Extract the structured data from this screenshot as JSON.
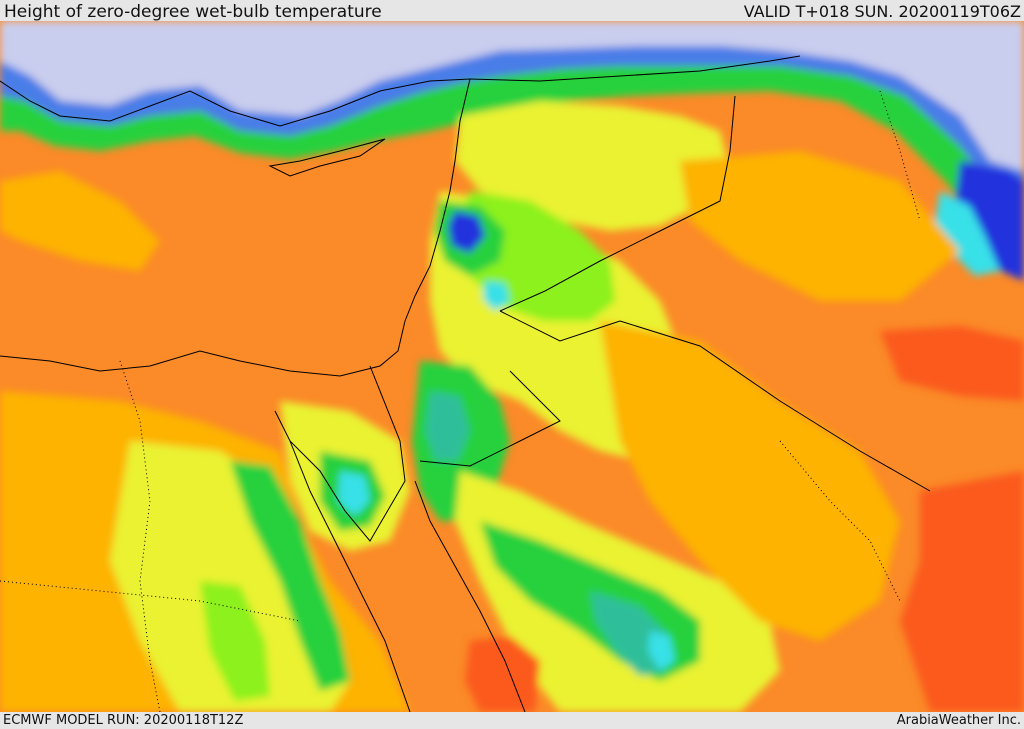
{
  "header": {
    "title": "Height of zero-degree wet-bulb temperature",
    "valid": "VALID T+018 SUN. 20200119T06Z"
  },
  "footer": {
    "model_run": "ECMWF MODEL RUN: 20200118T12Z",
    "credit": "ArabiaWeather Inc."
  },
  "map": {
    "colors": {
      "sea_ice": "#c9cdee",
      "deep_blue": "#2233dd",
      "blue": "#4a7de8",
      "cyan": "#39e0e8",
      "teal": "#2fbf9a",
      "green": "#26d13c",
      "lime": "#8cf11a",
      "yellow_green": "#d7f020",
      "yellow": "#eaf233",
      "amber": "#fdb300",
      "orange": "#fb8a28",
      "red_orange": "#fb5a1c",
      "border": "#000000"
    }
  }
}
